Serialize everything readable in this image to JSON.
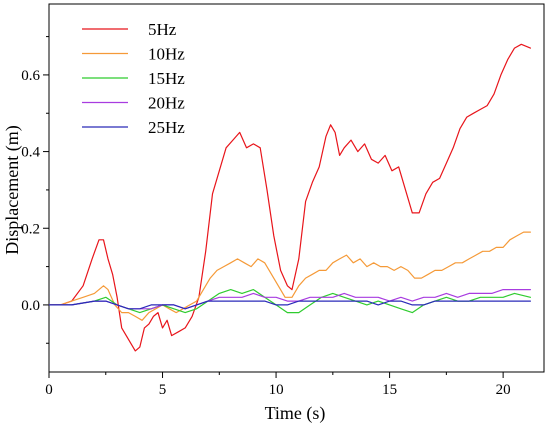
{
  "chart_data": {
    "type": "line",
    "xlabel": "Time (s)",
    "ylabel": "Displacement (m)",
    "xlim": [
      0,
      21.8
    ],
    "ylim": [
      -0.175,
      0.785
    ],
    "xticks": [
      0,
      5,
      10,
      15,
      20
    ],
    "yticks": [
      0.0,
      0.2,
      0.4,
      0.6
    ],
    "ytick_labels": [
      "0.0",
      "0.2",
      "0.4",
      "0.6"
    ],
    "grid": false,
    "legend_position": "top-left",
    "series": [
      {
        "name": "5Hz",
        "color": "#e8151b",
        "x": [
          0,
          0.5,
          1.0,
          1.5,
          1.9,
          2.2,
          2.4,
          2.6,
          2.8,
          3.0,
          3.2,
          3.5,
          3.8,
          4.0,
          4.2,
          4.4,
          4.6,
          4.8,
          5.0,
          5.2,
          5.4,
          5.7,
          6.0,
          6.3,
          6.6,
          6.9,
          7.2,
          7.5,
          7.8,
          8.1,
          8.4,
          8.7,
          9.0,
          9.3,
          9.6,
          9.9,
          10.2,
          10.5,
          10.7,
          11.0,
          11.3,
          11.6,
          11.9,
          12.2,
          12.4,
          12.6,
          12.8,
          13.0,
          13.3,
          13.6,
          13.9,
          14.2,
          14.5,
          14.8,
          15.1,
          15.4,
          15.7,
          16.0,
          16.3,
          16.6,
          16.9,
          17.2,
          17.5,
          17.8,
          18.1,
          18.4,
          18.7,
          19.0,
          19.3,
          19.6,
          19.9,
          20.2,
          20.5,
          20.8,
          21.2
        ],
        "y": [
          0.0,
          0.0,
          0.01,
          0.05,
          0.12,
          0.17,
          0.17,
          0.12,
          0.08,
          0.02,
          -0.06,
          -0.09,
          -0.12,
          -0.11,
          -0.06,
          -0.05,
          -0.03,
          -0.02,
          -0.06,
          -0.04,
          -0.08,
          -0.07,
          -0.06,
          -0.03,
          0.02,
          0.14,
          0.29,
          0.35,
          0.41,
          0.43,
          0.45,
          0.41,
          0.42,
          0.41,
          0.3,
          0.18,
          0.09,
          0.05,
          0.04,
          0.12,
          0.27,
          0.32,
          0.36,
          0.44,
          0.47,
          0.45,
          0.39,
          0.41,
          0.43,
          0.4,
          0.42,
          0.38,
          0.37,
          0.39,
          0.35,
          0.36,
          0.3,
          0.24,
          0.24,
          0.29,
          0.32,
          0.33,
          0.37,
          0.41,
          0.46,
          0.49,
          0.5,
          0.51,
          0.52,
          0.55,
          0.6,
          0.64,
          0.67,
          0.68,
          0.67
        ]
      },
      {
        "name": "10Hz",
        "color": "#f59a38",
        "x": [
          0,
          0.5,
          1.0,
          1.5,
          2.0,
          2.4,
          2.6,
          2.9,
          3.2,
          3.5,
          3.8,
          4.1,
          4.4,
          4.7,
          5.0,
          5.3,
          5.6,
          5.9,
          6.2,
          6.5,
          6.8,
          7.1,
          7.4,
          7.7,
          8.0,
          8.3,
          8.6,
          8.9,
          9.2,
          9.5,
          9.8,
          10.1,
          10.4,
          10.7,
          11.0,
          11.3,
          11.6,
          11.9,
          12.2,
          12.5,
          12.8,
          13.1,
          13.4,
          13.7,
          14.0,
          14.3,
          14.6,
          14.9,
          15.2,
          15.5,
          15.8,
          16.1,
          16.4,
          16.7,
          17.0,
          17.3,
          17.6,
          17.9,
          18.2,
          18.5,
          18.8,
          19.1,
          19.4,
          19.7,
          20.0,
          20.3,
          20.6,
          20.9,
          21.2
        ],
        "y": [
          0.0,
          0.0,
          0.01,
          0.02,
          0.03,
          0.05,
          0.04,
          0.0,
          -0.02,
          -0.02,
          -0.03,
          -0.04,
          -0.02,
          -0.01,
          0.0,
          -0.01,
          -0.02,
          -0.01,
          0.0,
          0.01,
          0.04,
          0.07,
          0.09,
          0.1,
          0.11,
          0.12,
          0.11,
          0.1,
          0.12,
          0.11,
          0.08,
          0.05,
          0.02,
          0.02,
          0.05,
          0.07,
          0.08,
          0.09,
          0.09,
          0.11,
          0.12,
          0.13,
          0.11,
          0.12,
          0.1,
          0.11,
          0.1,
          0.1,
          0.09,
          0.1,
          0.09,
          0.07,
          0.07,
          0.08,
          0.09,
          0.09,
          0.1,
          0.11,
          0.11,
          0.12,
          0.13,
          0.14,
          0.14,
          0.15,
          0.15,
          0.17,
          0.18,
          0.19,
          0.19
        ]
      },
      {
        "name": "15Hz",
        "color": "#2fcc2f",
        "x": [
          0,
          1.0,
          2.0,
          2.5,
          3.0,
          3.5,
          4.0,
          4.5,
          5.0,
          5.5,
          6.0,
          6.5,
          7.0,
          7.5,
          8.0,
          8.5,
          9.0,
          9.5,
          10.0,
          10.5,
          11.0,
          11.5,
          12.0,
          12.5,
          13.0,
          13.5,
          14.0,
          14.5,
          15.0,
          15.5,
          16.0,
          16.5,
          17.0,
          17.5,
          18.0,
          18.5,
          19.0,
          19.5,
          20.0,
          20.5,
          21.2
        ],
        "y": [
          0.0,
          0.0,
          0.01,
          0.02,
          0.0,
          -0.01,
          -0.02,
          -0.01,
          0.0,
          -0.01,
          -0.02,
          -0.01,
          0.01,
          0.03,
          0.04,
          0.03,
          0.04,
          0.02,
          0.0,
          -0.02,
          -0.02,
          0.0,
          0.02,
          0.03,
          0.02,
          0.01,
          0.0,
          0.01,
          0.0,
          -0.01,
          -0.02,
          0.0,
          0.01,
          0.02,
          0.01,
          0.01,
          0.02,
          0.02,
          0.02,
          0.03,
          0.02
        ]
      },
      {
        "name": "20Hz",
        "color": "#a83ce0",
        "x": [
          0,
          1.0,
          2.0,
          2.5,
          3.0,
          3.5,
          4.0,
          4.5,
          5.0,
          5.5,
          6.0,
          6.5,
          7.0,
          7.5,
          8.0,
          8.5,
          9.0,
          9.5,
          10.0,
          10.5,
          11.0,
          11.5,
          12.0,
          12.5,
          13.0,
          13.5,
          14.0,
          14.5,
          15.0,
          15.5,
          16.0,
          16.5,
          17.0,
          17.5,
          18.0,
          18.5,
          19.0,
          19.5,
          20.0,
          20.5,
          21.2
        ],
        "y": [
          0.0,
          0.0,
          0.01,
          0.01,
          0.0,
          -0.01,
          -0.01,
          -0.01,
          0.0,
          0.0,
          -0.01,
          0.0,
          0.01,
          0.02,
          0.02,
          0.02,
          0.03,
          0.02,
          0.02,
          0.01,
          0.01,
          0.02,
          0.02,
          0.02,
          0.03,
          0.02,
          0.02,
          0.02,
          0.01,
          0.02,
          0.01,
          0.02,
          0.02,
          0.03,
          0.02,
          0.03,
          0.03,
          0.03,
          0.04,
          0.04,
          0.04
        ]
      },
      {
        "name": "25Hz",
        "color": "#2a2ab8",
        "x": [
          0,
          1.0,
          2.0,
          2.5,
          3.0,
          3.5,
          4.0,
          4.5,
          5.0,
          5.5,
          6.0,
          6.5,
          7.0,
          7.5,
          8.0,
          8.5,
          9.0,
          9.5,
          10.0,
          10.5,
          11.0,
          11.5,
          12.0,
          12.5,
          13.0,
          13.5,
          14.0,
          14.5,
          15.0,
          15.5,
          16.0,
          16.5,
          17.0,
          17.5,
          18.0,
          18.5,
          19.0,
          19.5,
          20.0,
          20.5,
          21.2
        ],
        "y": [
          0.0,
          0.0,
          0.01,
          0.01,
          0.0,
          -0.01,
          -0.01,
          0.0,
          0.0,
          0.0,
          -0.01,
          0.0,
          0.01,
          0.01,
          0.01,
          0.01,
          0.01,
          0.01,
          0.0,
          0.0,
          0.01,
          0.01,
          0.01,
          0.01,
          0.01,
          0.01,
          0.01,
          0.0,
          0.01,
          0.01,
          0.0,
          0.0,
          0.01,
          0.01,
          0.01,
          0.01,
          0.01,
          0.01,
          0.01,
          0.01,
          0.01
        ]
      }
    ]
  }
}
